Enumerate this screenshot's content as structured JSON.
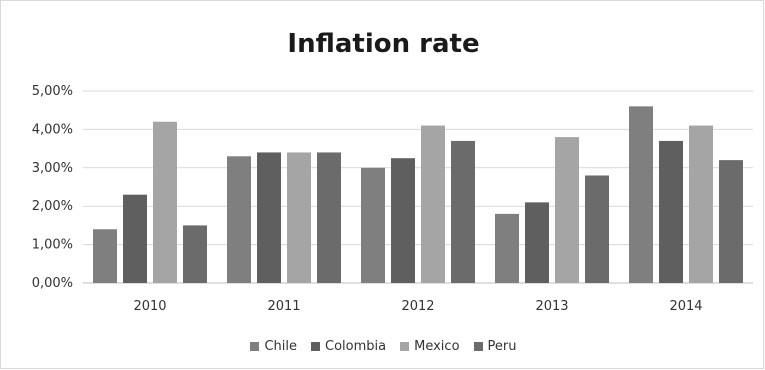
{
  "chart_data": {
    "type": "bar",
    "title": "Inflation rate",
    "xlabel": "",
    "ylabel": "",
    "categories": [
      "2010",
      "2011",
      "2012",
      "2013",
      "2014"
    ],
    "series": [
      {
        "name": "Chile",
        "color": "#7f7f7f",
        "values": [
          1.4,
          3.3,
          3.0,
          1.8,
          4.6
        ]
      },
      {
        "name": "Colombia",
        "color": "#5f5f5f",
        "values": [
          2.3,
          3.4,
          3.25,
          2.1,
          3.7
        ]
      },
      {
        "name": "Mexico",
        "color": "#a5a5a5",
        "values": [
          4.2,
          3.4,
          4.1,
          3.8,
          4.1
        ]
      },
      {
        "name": "Peru",
        "color": "#6b6b6b",
        "values": [
          1.5,
          3.4,
          3.7,
          2.8,
          3.2
        ]
      }
    ],
    "ylim": [
      0,
      5
    ],
    "yticks": [
      "0,00%",
      "1,00%",
      "2,00%",
      "3,00%",
      "4,00%",
      "5,00%"
    ],
    "grid": true,
    "legend_position": "bottom"
  }
}
